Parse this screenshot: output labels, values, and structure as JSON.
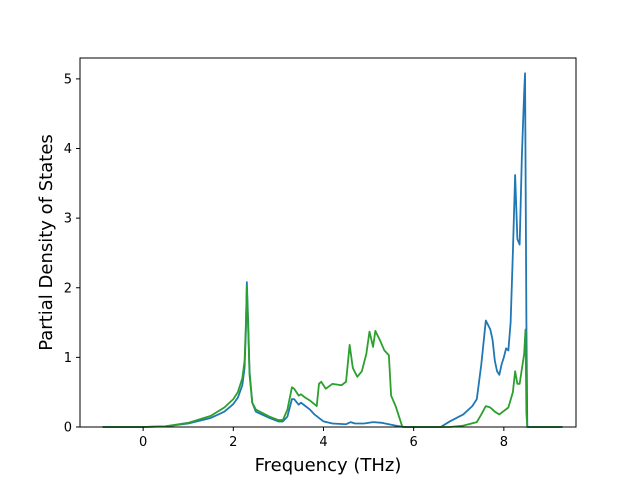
{
  "chart_data": {
    "type": "line",
    "xlabel": "Frequency (THz)",
    "ylabel": "Partial Density of States",
    "xlim": [
      -1.4,
      9.6
    ],
    "ylim": [
      0,
      5.3
    ],
    "xticks": [
      0,
      2,
      4,
      6,
      8
    ],
    "yticks": [
      0,
      1,
      2,
      3,
      4,
      5
    ],
    "xtick_labels": [
      "0",
      "2",
      "4",
      "6",
      "8"
    ],
    "ytick_labels": [
      "0",
      "1",
      "2",
      "3",
      "4",
      "5"
    ],
    "grid": false,
    "series": [
      {
        "color": "#1f77b4",
        "points": [
          [
            -0.9,
            0
          ],
          [
            0,
            0
          ],
          [
            0.5,
            0.01
          ],
          [
            1.0,
            0.05
          ],
          [
            1.5,
            0.13
          ],
          [
            1.8,
            0.22
          ],
          [
            2.0,
            0.33
          ],
          [
            2.1,
            0.42
          ],
          [
            2.2,
            0.6
          ],
          [
            2.25,
            0.85
          ],
          [
            2.28,
            1.4
          ],
          [
            2.3,
            2.08
          ],
          [
            2.33,
            1.5
          ],
          [
            2.36,
            0.8
          ],
          [
            2.42,
            0.35
          ],
          [
            2.5,
            0.22
          ],
          [
            2.8,
            0.13
          ],
          [
            3.0,
            0.08
          ],
          [
            3.1,
            0.08
          ],
          [
            3.2,
            0.15
          ],
          [
            3.3,
            0.4
          ],
          [
            3.35,
            0.4
          ],
          [
            3.45,
            0.32
          ],
          [
            3.5,
            0.35
          ],
          [
            3.6,
            0.3
          ],
          [
            3.7,
            0.25
          ],
          [
            3.8,
            0.18
          ],
          [
            4.0,
            0.08
          ],
          [
            4.2,
            0.05
          ],
          [
            4.5,
            0.04
          ],
          [
            4.6,
            0.07
          ],
          [
            4.7,
            0.05
          ],
          [
            4.9,
            0.05
          ],
          [
            5.1,
            0.07
          ],
          [
            5.3,
            0.06
          ],
          [
            5.6,
            0.02
          ],
          [
            5.8,
            0.0
          ],
          [
            6.6,
            0.0
          ],
          [
            6.8,
            0.08
          ],
          [
            7.1,
            0.18
          ],
          [
            7.3,
            0.3
          ],
          [
            7.4,
            0.4
          ],
          [
            7.5,
            0.9
          ],
          [
            7.6,
            1.53
          ],
          [
            7.7,
            1.4
          ],
          [
            7.75,
            1.25
          ],
          [
            7.8,
            0.95
          ],
          [
            7.85,
            0.8
          ],
          [
            7.9,
            0.75
          ],
          [
            7.95,
            0.9
          ],
          [
            8.0,
            1.0
          ],
          [
            8.05,
            1.13
          ],
          [
            8.1,
            1.1
          ],
          [
            8.15,
            1.5
          ],
          [
            8.2,
            2.5
          ],
          [
            8.25,
            3.62
          ],
          [
            8.3,
            2.7
          ],
          [
            8.35,
            2.62
          ],
          [
            8.4,
            3.9
          ],
          [
            8.45,
            4.8
          ],
          [
            8.47,
            5.08
          ],
          [
            8.5,
            1.5
          ],
          [
            8.52,
            0.0
          ],
          [
            9.3,
            0.0
          ]
        ]
      },
      {
        "color": "#2ca02c",
        "points": [
          [
            -0.9,
            0
          ],
          [
            0,
            0
          ],
          [
            0.5,
            0.01
          ],
          [
            1.0,
            0.06
          ],
          [
            1.5,
            0.16
          ],
          [
            1.8,
            0.28
          ],
          [
            2.0,
            0.4
          ],
          [
            2.1,
            0.5
          ],
          [
            2.2,
            0.7
          ],
          [
            2.25,
            0.95
          ],
          [
            2.28,
            1.5
          ],
          [
            2.3,
            2.02
          ],
          [
            2.33,
            1.4
          ],
          [
            2.36,
            0.75
          ],
          [
            2.42,
            0.35
          ],
          [
            2.5,
            0.25
          ],
          [
            2.8,
            0.15
          ],
          [
            3.0,
            0.1
          ],
          [
            3.1,
            0.1
          ],
          [
            3.2,
            0.25
          ],
          [
            3.3,
            0.57
          ],
          [
            3.35,
            0.55
          ],
          [
            3.45,
            0.45
          ],
          [
            3.5,
            0.47
          ],
          [
            3.6,
            0.42
          ],
          [
            3.7,
            0.38
          ],
          [
            3.85,
            0.3
          ],
          [
            3.9,
            0.62
          ],
          [
            3.95,
            0.65
          ],
          [
            4.05,
            0.55
          ],
          [
            4.2,
            0.62
          ],
          [
            4.4,
            0.6
          ],
          [
            4.5,
            0.65
          ],
          [
            4.58,
            1.18
          ],
          [
            4.65,
            0.85
          ],
          [
            4.75,
            0.72
          ],
          [
            4.85,
            0.8
          ],
          [
            4.95,
            1.05
          ],
          [
            5.02,
            1.37
          ],
          [
            5.1,
            1.15
          ],
          [
            5.15,
            1.38
          ],
          [
            5.25,
            1.25
          ],
          [
            5.35,
            1.1
          ],
          [
            5.45,
            1.03
          ],
          [
            5.5,
            0.45
          ],
          [
            5.6,
            0.3
          ],
          [
            5.7,
            0.1
          ],
          [
            5.75,
            0.0
          ],
          [
            6.8,
            0.0
          ],
          [
            7.1,
            0.02
          ],
          [
            7.4,
            0.07
          ],
          [
            7.5,
            0.18
          ],
          [
            7.6,
            0.3
          ],
          [
            7.7,
            0.28
          ],
          [
            7.8,
            0.22
          ],
          [
            7.9,
            0.18
          ],
          [
            8.1,
            0.28
          ],
          [
            8.2,
            0.5
          ],
          [
            8.25,
            0.8
          ],
          [
            8.3,
            0.62
          ],
          [
            8.35,
            0.62
          ],
          [
            8.45,
            1.05
          ],
          [
            8.48,
            1.4
          ],
          [
            8.5,
            0.2
          ],
          [
            8.52,
            0.0
          ],
          [
            9.3,
            0.0
          ]
        ]
      }
    ]
  }
}
